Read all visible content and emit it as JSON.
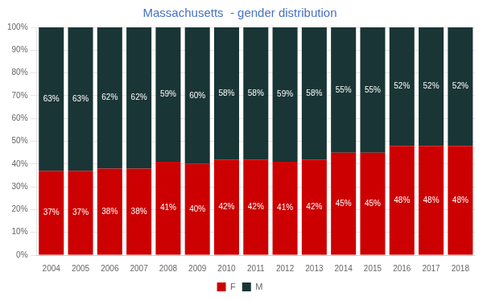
{
  "chart_data": {
    "type": "bar",
    "title": "Massachusetts  - gender distribution",
    "categories": [
      "2004",
      "2005",
      "2006",
      "2007",
      "2008",
      "2009",
      "2010",
      "2011",
      "2012",
      "2013",
      "2014",
      "2015",
      "2016",
      "2017",
      "2018"
    ],
    "series": [
      {
        "name": "F",
        "color": "#cc0000",
        "values": [
          37,
          37,
          38,
          38,
          41,
          40,
          42,
          42,
          41,
          42,
          45,
          45,
          48,
          48,
          48
        ],
        "value_labels": [
          "37%",
          "37%",
          "38%",
          "38%",
          "41%",
          "40%",
          "42%",
          "42%",
          "41%",
          "42%",
          "45%",
          "45%",
          "48%",
          "48%",
          "48%"
        ]
      },
      {
        "name": "M",
        "color": "#1a3535",
        "values": [
          63,
          63,
          62,
          62,
          59,
          60,
          58,
          58,
          59,
          58,
          55,
          55,
          52,
          52,
          52
        ],
        "value_labels": [
          "63%",
          "63%",
          "62%",
          "62%",
          "59%",
          "60%",
          "58%",
          "58%",
          "59%",
          "58%",
          "55%",
          "55%",
          "52%",
          "52%",
          "52%"
        ]
      }
    ],
    "stacked": true,
    "data_labels": true,
    "ylim": [
      0,
      100
    ],
    "yticks": [
      {
        "value": 0,
        "label": "0%"
      },
      {
        "value": 10,
        "label": "10%"
      },
      {
        "value": 20,
        "label": "20%"
      },
      {
        "value": 30,
        "label": "30%"
      },
      {
        "value": 40,
        "label": "40%"
      },
      {
        "value": 50,
        "label": "50%"
      },
      {
        "value": 60,
        "label": "60%"
      },
      {
        "value": 70,
        "label": "70%"
      },
      {
        "value": 80,
        "label": "80%"
      },
      {
        "value": 90,
        "label": "90%"
      },
      {
        "value": 100,
        "label": "100%"
      }
    ],
    "grid": true,
    "legend": "bottom"
  }
}
